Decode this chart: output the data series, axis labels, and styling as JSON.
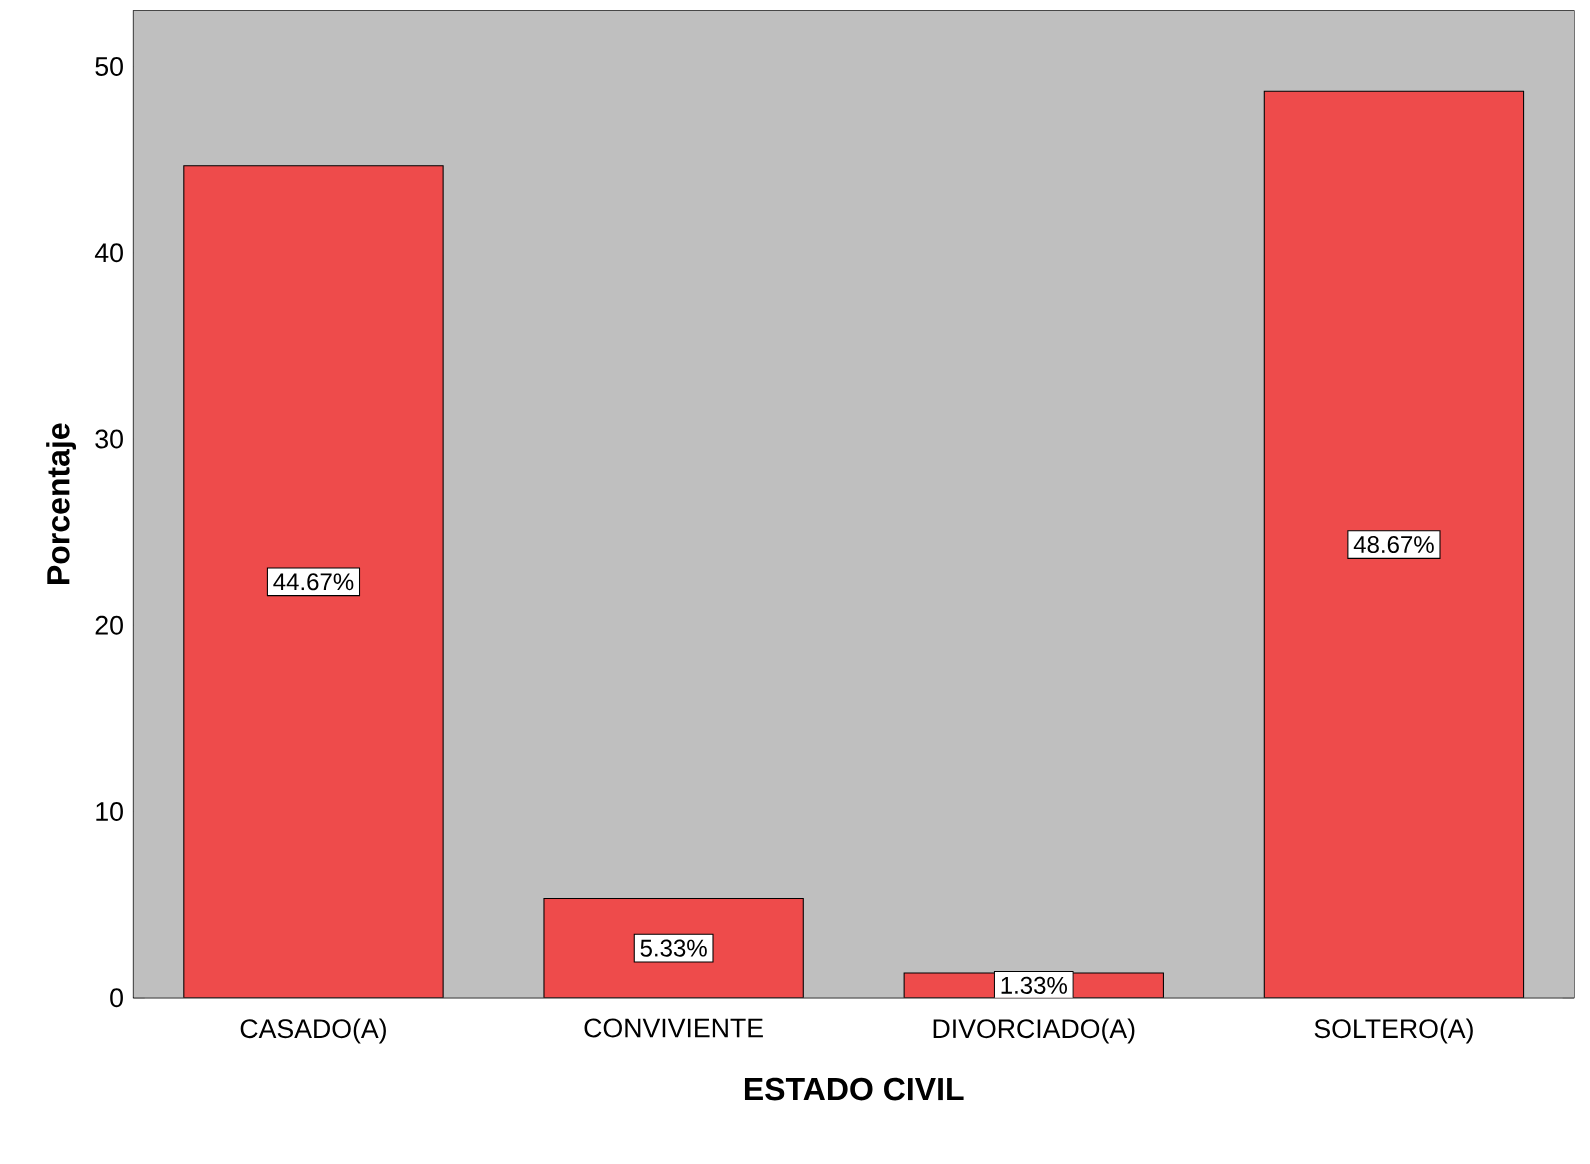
{
  "chart_data": {
    "type": "bar",
    "xlabel": "ESTADO CIVIL",
    "ylabel": "Porcentaje",
    "categories": [
      "CASADO(A)",
      "CONVIVIENTE",
      "DIVORCIADO(A)",
      "SOLTERO(A)"
    ],
    "values": [
      44.67,
      5.33,
      1.33,
      48.67
    ],
    "value_labels": [
      "44.67%",
      "5.33%",
      "1.33%",
      "48.67%"
    ],
    "color": "#ee4b4b",
    "ylim": [
      0,
      53
    ],
    "yticks": [
      0,
      10,
      20,
      30,
      40,
      50
    ],
    "grid": "y"
  }
}
